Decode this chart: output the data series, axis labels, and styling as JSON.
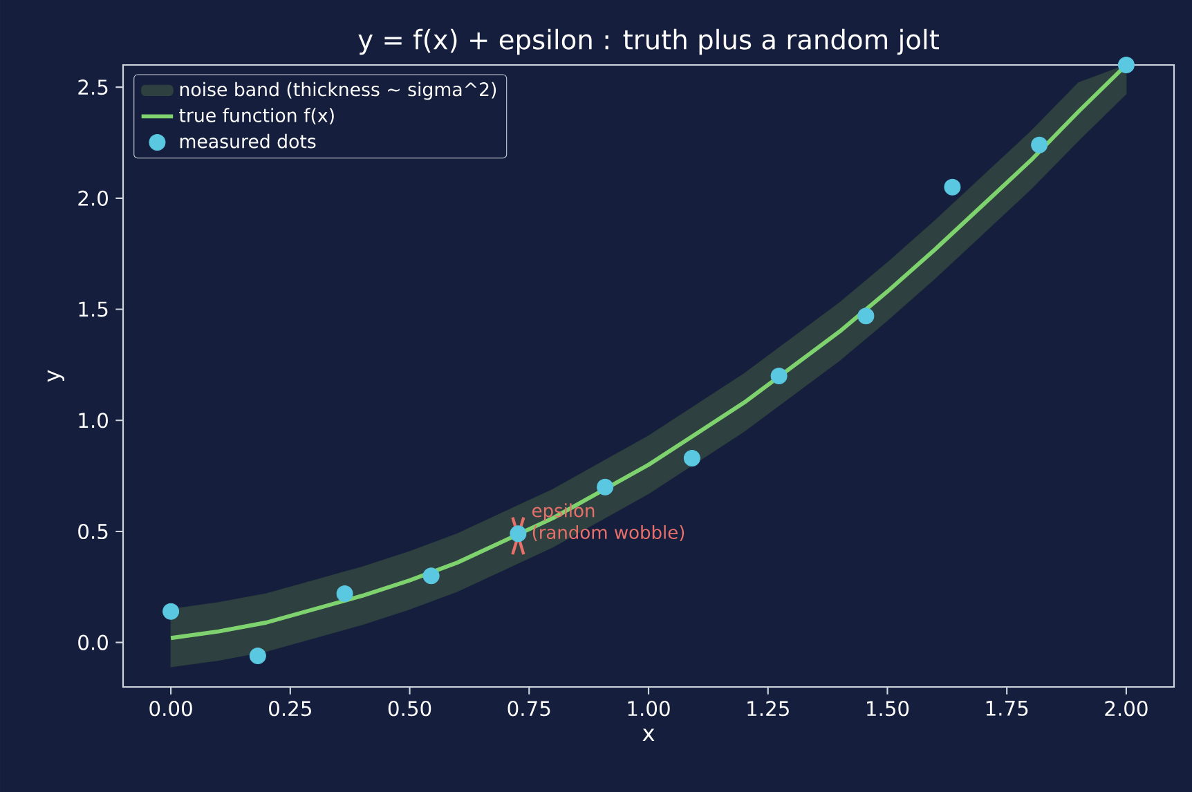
{
  "chart_data": {
    "type": "line",
    "title": "y = f(x) + epsilon  :  truth plus a random jolt",
    "xlabel": "x",
    "ylabel": "y",
    "xlim": [
      -0.1,
      2.1
    ],
    "ylim": [
      -0.2,
      2.6
    ],
    "xticks": [
      {
        "value": 0,
        "label": "0.00"
      },
      0.25,
      {
        "value": 0.5,
        "label": "0.50"
      },
      0.75,
      {
        "value": 1,
        "label": "1.00"
      },
      1.25,
      {
        "value": 1.5,
        "label": "1.50"
      },
      1.75,
      {
        "value": 2,
        "label": "2.00"
      }
    ],
    "yticks": [
      {
        "value": 0,
        "label": "0.0"
      },
      0.5,
      {
        "value": 1,
        "label": "1.0"
      },
      1.5,
      {
        "value": 2,
        "label": "2.0"
      },
      2.5
    ],
    "grid": false,
    "legend": "top left",
    "series": [
      {
        "name": "true function f(x)",
        "color": "#7fd36e",
        "marker": "none",
        "x": [
          0,
          0.1,
          0.2,
          0.3,
          0.4,
          0.5,
          0.6,
          0.7,
          0.8,
          0.9,
          1.0,
          1.1,
          1.2,
          1.3,
          1.4,
          1.5,
          1.6,
          1.7,
          1.8,
          1.9,
          2.0
        ],
        "values": [
          0.02,
          0.05,
          0.09,
          0.15,
          0.21,
          0.28,
          0.36,
          0.46,
          0.56,
          0.68,
          0.8,
          0.94,
          1.08,
          1.24,
          1.4,
          1.58,
          1.77,
          1.97,
          2.17,
          2.39,
          2.6
        ]
      },
      {
        "name": "noise band (thickness ~ sigma^2)",
        "color": "#2e403f",
        "x": [
          0,
          0.1,
          0.2,
          0.3,
          0.4,
          0.5,
          0.6,
          0.7,
          0.8,
          0.9,
          1.0,
          1.1,
          1.2,
          1.3,
          1.4,
          1.5,
          1.6,
          1.7,
          1.8,
          1.9,
          2.0
        ],
        "values": [
          null,
          null,
          null,
          null,
          null,
          null,
          null,
          null,
          null,
          null,
          null,
          null,
          null,
          null,
          null,
          null,
          null,
          null,
          null,
          null,
          null
        ],
        "upper": [
          0.15,
          0.18,
          0.22,
          0.28,
          0.34,
          0.41,
          0.49,
          0.59,
          0.69,
          0.81,
          0.93,
          1.07,
          1.21,
          1.37,
          1.53,
          1.71,
          1.9,
          2.1,
          2.3,
          2.52,
          2.6
        ],
        "lower": [
          -0.11,
          -0.08,
          -0.04,
          0.02,
          0.08,
          0.15,
          0.23,
          0.33,
          0.43,
          0.55,
          0.67,
          0.81,
          0.95,
          1.11,
          1.27,
          1.45,
          1.64,
          1.84,
          2.04,
          2.26,
          2.47
        ]
      },
      {
        "type": "scatter",
        "name": "measured dots",
        "color": "#5ac8e0",
        "marker": "circle",
        "x": [
          0,
          0.182,
          0.364,
          0.545,
          0.727,
          0.909,
          1.091,
          1.273,
          1.455,
          1.636,
          1.818,
          2.0
        ],
        "values": [
          0.14,
          -0.06,
          0.22,
          0.3,
          0.49,
          0.7,
          0.83,
          1.2,
          1.47,
          2.05,
          2.24,
          2.6
        ]
      }
    ],
    "annotations": [
      {
        "text": "epsilon",
        "x": 0.727,
        "y": 0.48
      },
      "(random wobble)"
    ]
  }
}
